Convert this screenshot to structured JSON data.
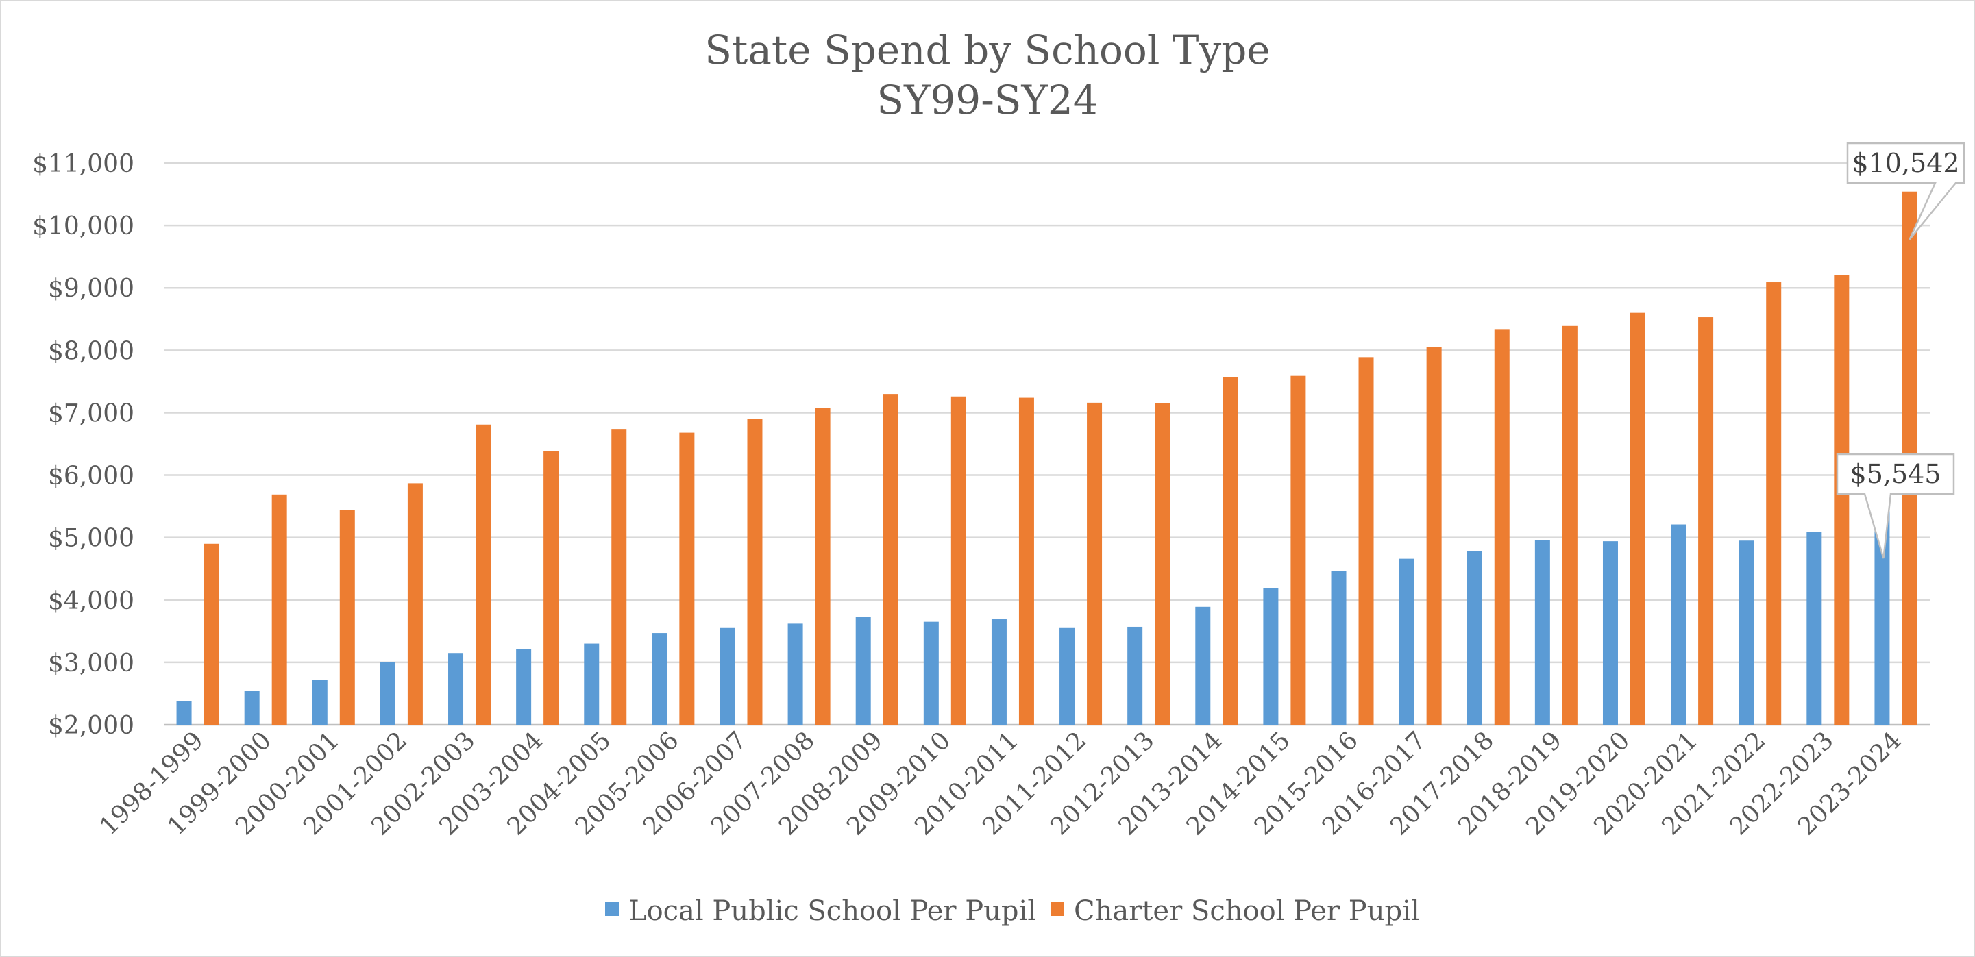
{
  "chart_data": {
    "type": "bar",
    "title": "State Spend by School Type",
    "subtitle": "SY99-SY24",
    "xlabel": "",
    "ylabel": "",
    "ylim": [
      2000,
      11000
    ],
    "ytick_step": 1000,
    "grid": true,
    "legend_position": "bottom",
    "categories": [
      "1998-1999",
      "1999-2000",
      "2000-2001",
      "2001-2002",
      "2002-2003",
      "2003-2004",
      "2004-2005",
      "2005-2006",
      "2006-2007",
      "2007-2008",
      "2008-2009",
      "2009-2010",
      "2010-2011",
      "2011-2012",
      "2012-2013",
      "2013-2014",
      "2014-2015",
      "2015-2016",
      "2016-2017",
      "2017-2018",
      "2018-2019",
      "2019-2020",
      "2020-2021",
      "2021-2022",
      "2022-2023",
      "2023-2024"
    ],
    "series": [
      {
        "name": "Local Public School Per Pupil",
        "color": "#5b9bd5",
        "values": [
          2380,
          2540,
          2720,
          3000,
          3150,
          3210,
          3300,
          3470,
          3550,
          3620,
          3730,
          3650,
          3690,
          3550,
          3570,
          3890,
          4190,
          4460,
          4660,
          4780,
          4960,
          4940,
          5210,
          4950,
          5090,
          5545
        ]
      },
      {
        "name": "Charter School Per Pupil",
        "color": "#ed7d31",
        "values": [
          4900,
          5690,
          5440,
          5870,
          6810,
          6390,
          6740,
          6680,
          6900,
          7080,
          7300,
          7260,
          7240,
          7160,
          7150,
          7570,
          7590,
          7890,
          8050,
          8340,
          8390,
          8600,
          8530,
          9090,
          9210,
          10542
        ]
      }
    ],
    "annotations": [
      {
        "series": 1,
        "category": "2023-2024",
        "text": "$10,542"
      },
      {
        "series": 0,
        "category": "2023-2024",
        "text": "$5,545"
      }
    ]
  }
}
